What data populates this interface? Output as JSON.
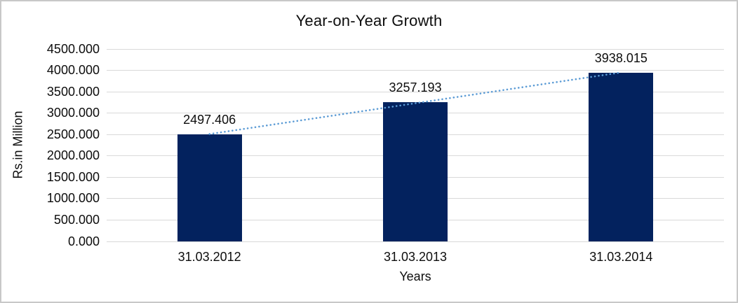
{
  "chart_data": {
    "type": "bar",
    "title": "Year-on-Year Growth",
    "xlabel": "Years",
    "ylabel": "Rs.in Million",
    "categories": [
      "31.03.2012",
      "31.03.2013",
      "31.03.2014"
    ],
    "values": [
      2497.406,
      3257.193,
      3938.015
    ],
    "value_labels": [
      "2497.406",
      "3257.193",
      "3938.015"
    ],
    "ylim": [
      0,
      4500
    ],
    "ytick_step": 500,
    "ytick_labels": [
      "0.000",
      "500.000",
      "1000.000",
      "1500.000",
      "2000.000",
      "2500.000",
      "3000.000",
      "3500.000",
      "4000.000",
      "4500.000"
    ],
    "grid": true,
    "legend": "none",
    "bar_color": "#03225E",
    "trendline": {
      "type": "linear",
      "style": "dotted",
      "color": "#5B9BD5",
      "fitted_values": [
        2510.567,
        3230.871,
        3951.176
      ]
    }
  },
  "colors": {
    "gridline": "#D9D9D9",
    "text": "#0D0D0D",
    "border": "#C8C8C8",
    "background": "#FFFFFF"
  }
}
